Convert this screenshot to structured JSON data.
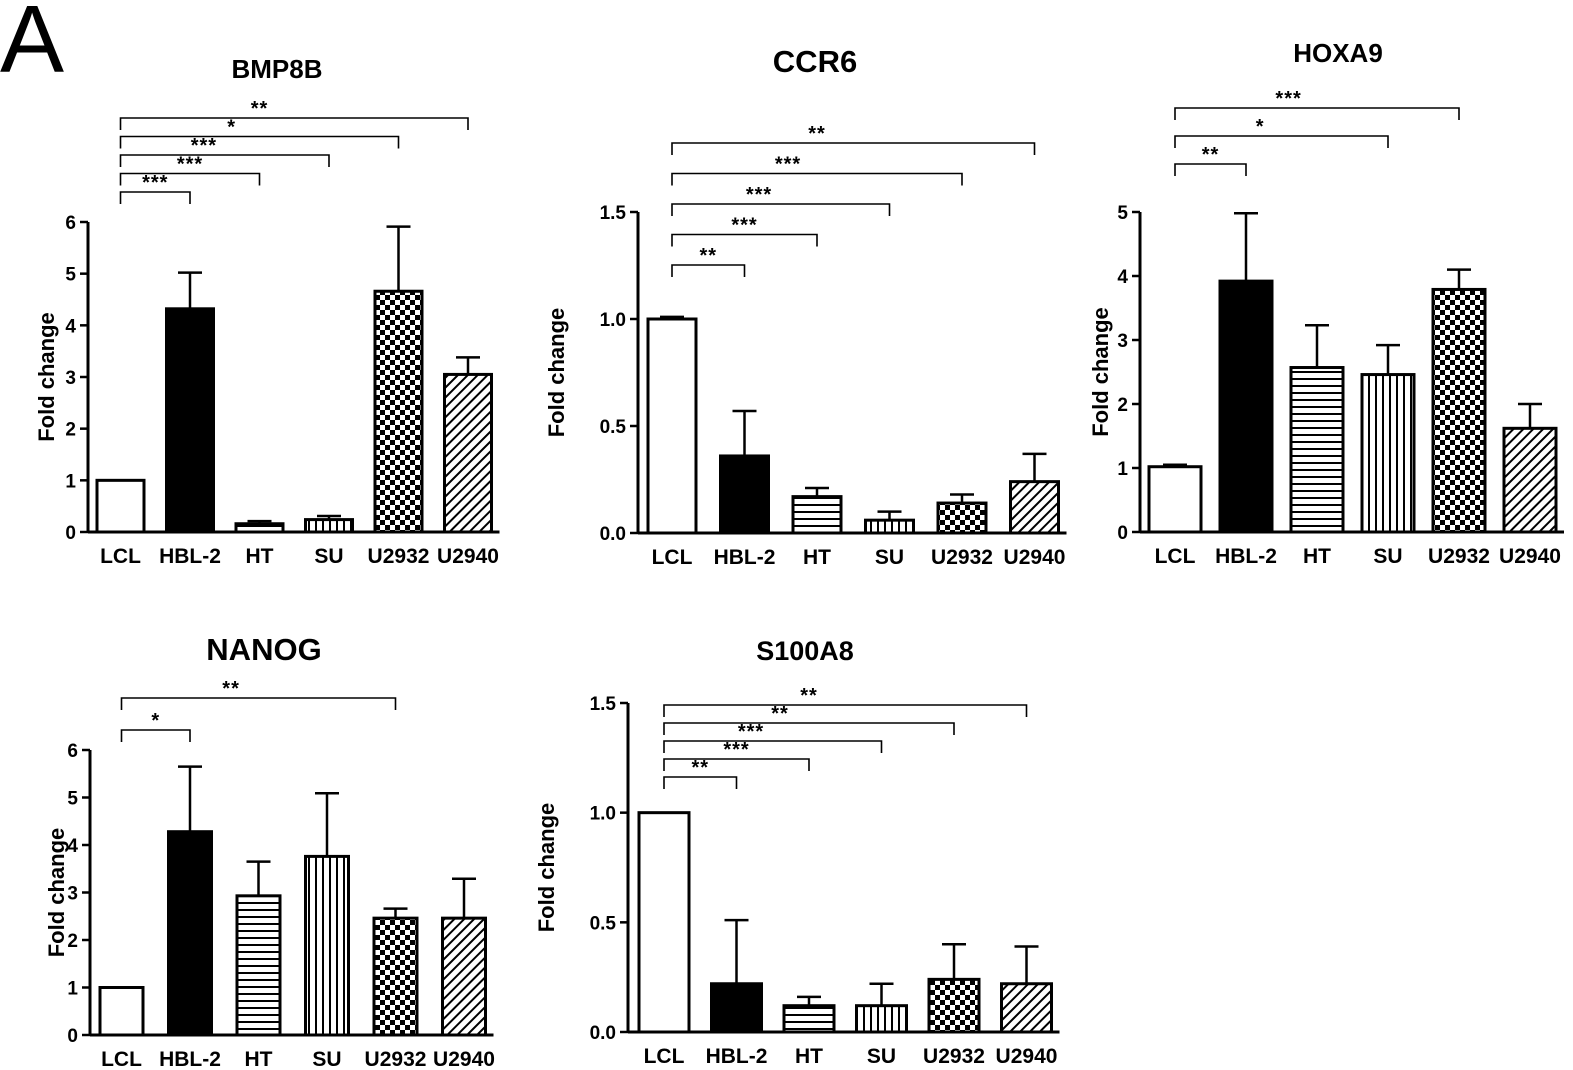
{
  "panel_label": "A",
  "chart_data": [
    {
      "type": "bar",
      "title": "BMP8B",
      "categories": [
        "LCL",
        "HBL-2",
        "HT",
        "SU",
        "U2932",
        "U2940"
      ],
      "values": [
        1.0,
        4.32,
        0.16,
        0.24,
        4.66,
        3.05
      ],
      "errors": [
        0.0,
        0.7,
        0.05,
        0.07,
        1.25,
        0.33
      ],
      "ylabel": "Fold change",
      "xlabel": "",
      "ylim": [
        0,
        6
      ],
      "yticks": [
        0,
        1,
        2,
        3,
        4,
        5,
        6
      ],
      "significance": [
        {
          "from": "LCL",
          "to": "HBL-2",
          "label": "***"
        },
        {
          "from": "LCL",
          "to": "HT",
          "label": "***"
        },
        {
          "from": "LCL",
          "to": "SU",
          "label": "***"
        },
        {
          "from": "LCL",
          "to": "U2932",
          "label": "*"
        },
        {
          "from": "LCL",
          "to": "U2940",
          "label": "**"
        }
      ]
    },
    {
      "type": "bar",
      "title": "CCR6",
      "categories": [
        "LCL",
        "HBL-2",
        "HT",
        "SU",
        "U2932",
        "U2940"
      ],
      "values": [
        1.0,
        0.36,
        0.17,
        0.06,
        0.14,
        0.24
      ],
      "errors": [
        0.01,
        0.21,
        0.04,
        0.04,
        0.04,
        0.13
      ],
      "ylabel": "Fold change",
      "xlabel": "",
      "ylim": [
        0,
        1.5
      ],
      "yticks": [
        "0.0",
        "0.5",
        "1.0",
        "1.5"
      ],
      "significance": [
        {
          "from": "LCL",
          "to": "HBL-2",
          "label": "**"
        },
        {
          "from": "LCL",
          "to": "HT",
          "label": "***"
        },
        {
          "from": "LCL",
          "to": "SU",
          "label": "***"
        },
        {
          "from": "LCL",
          "to": "U2932",
          "label": "***"
        },
        {
          "from": "LCL",
          "to": "U2940",
          "label": "**"
        }
      ]
    },
    {
      "type": "bar",
      "title": "HOXA9",
      "categories": [
        "LCL",
        "HBL-2",
        "HT",
        "SU",
        "U2932",
        "U2940"
      ],
      "values": [
        1.02,
        3.92,
        2.57,
        2.46,
        3.79,
        1.62
      ],
      "errors": [
        0.03,
        1.06,
        0.66,
        0.46,
        0.31,
        0.38
      ],
      "ylabel": "Fold change",
      "xlabel": "",
      "ylim": [
        0,
        5
      ],
      "yticks": [
        0,
        1,
        2,
        3,
        4,
        5
      ],
      "significance": [
        {
          "from": "LCL",
          "to": "HBL-2",
          "label": "**"
        },
        {
          "from": "LCL",
          "to": "SU",
          "label": "*"
        },
        {
          "from": "LCL",
          "to": "U2932",
          "label": "***"
        }
      ]
    },
    {
      "type": "bar",
      "title": "NANOG",
      "categories": [
        "LCL",
        "HBL-2",
        "HT",
        "SU",
        "U2932",
        "U2940"
      ],
      "values": [
        1.0,
        4.28,
        2.93,
        3.76,
        2.46,
        2.46
      ],
      "errors": [
        0.0,
        1.37,
        0.72,
        1.33,
        0.2,
        0.83
      ],
      "ylabel": "Fold change",
      "xlabel": "",
      "ylim": [
        0,
        6
      ],
      "yticks": [
        0,
        1,
        2,
        3,
        4,
        5,
        6
      ],
      "significance": [
        {
          "from": "LCL",
          "to": "HBL-2",
          "label": "*"
        },
        {
          "from": "LCL",
          "to": "U2932",
          "label": "**"
        }
      ]
    },
    {
      "type": "bar",
      "title": "S100A8",
      "categories": [
        "LCL",
        "HBL-2",
        "HT",
        "SU",
        "U2932",
        "U2940"
      ],
      "values": [
        1.0,
        0.22,
        0.12,
        0.12,
        0.24,
        0.22
      ],
      "errors": [
        0.0,
        0.29,
        0.04,
        0.1,
        0.16,
        0.17
      ],
      "ylabel": "Fold change",
      "xlabel": "",
      "ylim": [
        0,
        1.5
      ],
      "yticks": [
        "0.0",
        "0.5",
        "1.0",
        "1.5"
      ],
      "significance": [
        {
          "from": "LCL",
          "to": "HBL-2",
          "label": "**"
        },
        {
          "from": "LCL",
          "to": "HT",
          "label": "***"
        },
        {
          "from": "LCL",
          "to": "SU",
          "label": "***"
        },
        {
          "from": "LCL",
          "to": "U2932",
          "label": "**"
        },
        {
          "from": "LCL",
          "to": "U2940",
          "label": "**"
        }
      ]
    }
  ]
}
